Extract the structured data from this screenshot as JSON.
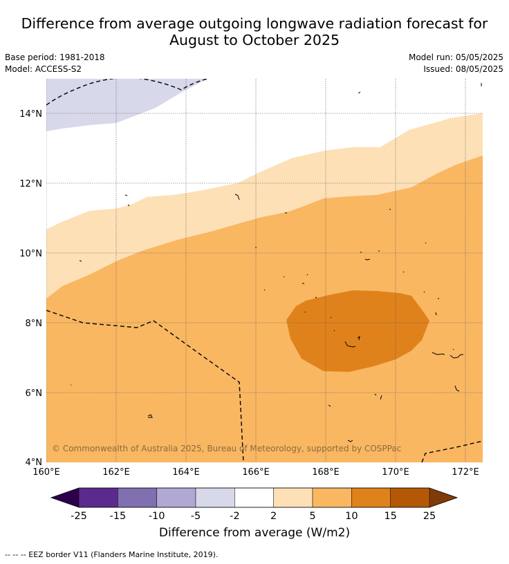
{
  "title_line1": "Difference from average outgoing longwave radiation forecast for",
  "title_line2": "August to October 2025",
  "base_period": "Base period: 1981-2018",
  "model": "Model: ACCESS-S2",
  "model_run": "Model run: 05/05/2025",
  "issued": "Issued: 08/05/2025",
  "lat_labels": [
    "14°N",
    "12°N",
    "10°N",
    "8°N",
    "6°N",
    "4°N"
  ],
  "lon_labels": [
    "160°E",
    "162°E",
    "164°E",
    "166°E",
    "168°E",
    "170°E",
    "172°E"
  ],
  "copyright": "© Commonwealth of Australia 2025, Bureau of Meteorology, supported by COSPPac",
  "colorbar": {
    "ticks": [
      "-25",
      "-15",
      "-10",
      "-5",
      "-2",
      "2",
      "5",
      "10",
      "15",
      "25"
    ],
    "colors": [
      "#5b2a8d",
      "#8170b0",
      "#b1a8d3",
      "#d8d8eb",
      "#ffffff",
      "#fde0b6",
      "#f9b762",
      "#e0821c",
      "#b35806"
    ],
    "under_color": "#2d004b",
    "over_color": "#7f3b08",
    "label": "Difference from average (W/m2)"
  },
  "footnote": "-- -- -- EEZ border V11 (Flanders Marine Institute, 2019)."
}
